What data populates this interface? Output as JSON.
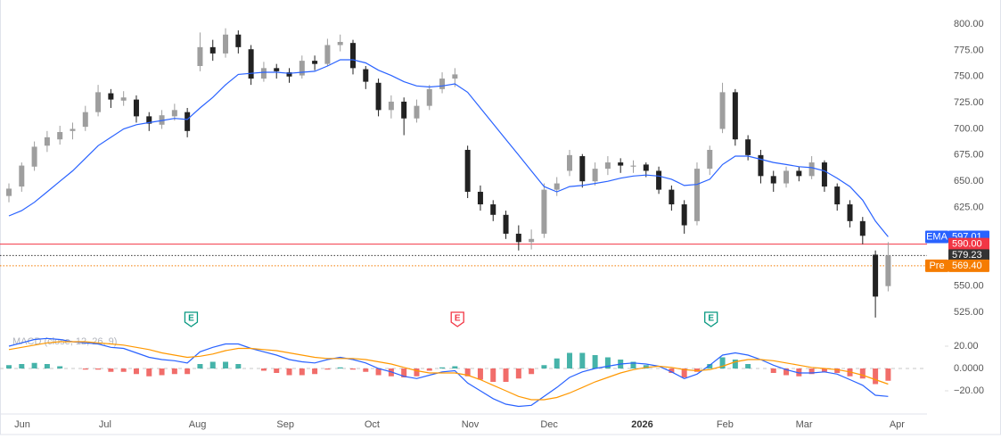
{
  "chart_data": [
    {
      "type": "candlestick",
      "xlim": [
        -0.7,
        71.7
      ],
      "xticks": [
        {
          "value": 1.05,
          "label": "Jun"
        },
        {
          "value": 7.55,
          "label": "Jul"
        },
        {
          "value": 14.8,
          "label": "Aug"
        },
        {
          "value": 21.7,
          "label": "Sep"
        },
        {
          "value": 28.5,
          "label": "Oct"
        },
        {
          "value": 36.2,
          "label": "Nov"
        },
        {
          "value": 42.4,
          "label": "Dec"
        },
        {
          "value": 49.7,
          "label": "2026"
        },
        {
          "value": 56.2,
          "label": "Feb"
        },
        {
          "value": 62.4,
          "label": "Mar"
        },
        {
          "value": 69.7,
          "label": "Apr"
        }
      ],
      "ylim": [
        508,
        823
      ],
      "yticks": [
        {
          "value": 800,
          "label": "800.00"
        },
        {
          "value": 775,
          "label": "775.00"
        },
        {
          "value": 750,
          "label": "750.00"
        },
        {
          "value": 725,
          "label": "725.00"
        },
        {
          "value": 700,
          "label": "700.00"
        },
        {
          "value": 675,
          "label": "675.00"
        },
        {
          "value": 650,
          "label": "650.00"
        },
        {
          "value": 625,
          "label": "625.00"
        },
        {
          "value": 550,
          "label": "550.00"
        },
        {
          "value": 525,
          "label": "525.00"
        }
      ],
      "up_color": "#9e9e9e",
      "down_color": "#222222",
      "ohlc": [
        [
          636,
          648,
          630,
          643
        ],
        [
          645,
          668,
          640,
          665
        ],
        [
          664,
          688,
          660,
          683
        ],
        [
          684,
          698,
          678,
          692
        ],
        [
          690,
          703,
          685,
          697
        ],
        [
          698,
          706,
          690,
          700
        ],
        [
          702,
          722,
          698,
          716
        ],
        [
          716,
          742,
          712,
          735
        ],
        [
          734,
          738,
          720,
          728
        ],
        [
          727,
          736,
          722,
          730
        ],
        [
          728,
          732,
          706,
          712
        ],
        [
          712,
          716,
          698,
          705
        ],
        [
          704,
          718,
          700,
          713
        ],
        [
          712,
          724,
          708,
          718
        ],
        [
          716,
          720,
          692,
          698
        ],
        [
          760,
          792,
          755,
          778
        ],
        [
          778,
          785,
          765,
          772
        ],
        [
          772,
          796,
          768,
          790
        ],
        [
          790,
          794,
          772,
          778
        ],
        [
          776,
          780,
          742,
          748
        ],
        [
          748,
          764,
          745,
          758
        ],
        [
          758,
          762,
          748,
          755
        ],
        [
          754,
          758,
          744,
          750
        ],
        [
          751,
          770,
          748,
          765
        ],
        [
          765,
          770,
          756,
          762
        ],
        [
          762,
          786,
          760,
          780
        ],
        [
          780,
          790,
          774,
          783
        ],
        [
          782,
          785,
          752,
          758
        ],
        [
          757,
          760,
          738,
          745
        ],
        [
          744,
          748,
          712,
          718
        ],
        [
          718,
          732,
          710,
          726
        ],
        [
          726,
          730,
          694,
          710
        ],
        [
          710,
          728,
          706,
          722
        ],
        [
          722,
          742,
          718,
          738
        ],
        [
          738,
          754,
          734,
          748
        ],
        [
          748,
          758,
          740,
          752
        ],
        [
          680,
          684,
          634,
          640
        ],
        [
          640,
          646,
          622,
          628
        ],
        [
          628,
          632,
          612,
          618
        ],
        [
          618,
          622,
          595,
          600
        ],
        [
          600,
          608,
          584,
          592
        ],
        [
          592,
          604,
          585,
          595
        ],
        [
          600,
          648,
          596,
          642
        ],
        [
          642,
          654,
          636,
          648
        ],
        [
          660,
          680,
          655,
          675
        ],
        [
          674,
          676,
          644,
          650
        ],
        [
          650,
          668,
          646,
          662
        ],
        [
          662,
          674,
          656,
          668
        ],
        [
          668,
          672,
          658,
          665
        ],
        [
          664,
          670,
          658,
          665
        ],
        [
          666,
          668,
          654,
          660
        ],
        [
          660,
          664,
          638,
          642
        ],
        [
          642,
          646,
          622,
          628
        ],
        [
          628,
          632,
          600,
          608
        ],
        [
          612,
          668,
          608,
          662
        ],
        [
          662,
          684,
          656,
          680
        ],
        [
          700,
          744,
          696,
          735
        ],
        [
          735,
          738,
          684,
          690
        ],
        [
          690,
          694,
          670,
          675
        ],
        [
          675,
          680,
          648,
          655
        ],
        [
          655,
          660,
          640,
          648
        ],
        [
          648,
          664,
          644,
          660
        ],
        [
          660,
          664,
          650,
          655
        ],
        [
          655,
          674,
          652,
          668
        ],
        [
          668,
          670,
          640,
          645
        ],
        [
          645,
          648,
          622,
          628
        ],
        [
          628,
          632,
          606,
          612
        ],
        [
          612,
          616,
          590,
          598
        ],
        [
          580,
          584,
          520,
          540
        ],
        [
          550,
          592,
          545,
          579.23
        ]
      ],
      "ema": {
        "color": "#2962ff",
        "values": [
          617,
          622,
          630,
          640,
          650,
          660,
          672,
          684,
          692,
          700,
          704,
          706,
          708,
          710,
          709,
          720,
          730,
          742,
          752,
          753,
          754,
          754,
          753,
          754,
          755,
          760,
          766,
          766,
          763,
          756,
          751,
          745,
          741,
          740,
          741,
          743,
          735,
          720,
          705,
          690,
          675,
          660,
          645,
          640,
          645,
          646,
          648,
          650,
          653,
          655,
          656,
          655,
          652,
          646,
          647,
          652,
          666,
          674,
          674,
          671,
          668,
          666,
          664,
          663,
          660,
          653,
          645,
          632,
          612,
          597.01
        ]
      },
      "price_lines": [
        {
          "name": "EMA",
          "value": 597.01,
          "color": "#2962ff",
          "line": "none"
        },
        {
          "value": 590,
          "value_label": "590.00",
          "color": "#f23645",
          "line": "solid"
        },
        {
          "value": 579.23,
          "color": "#333333",
          "line": "dotted"
        },
        {
          "name": "Pre",
          "value": 569.4,
          "value_label": "569.40",
          "color": "#f57c00",
          "line": "dotted"
        }
      ],
      "events": [
        {
          "label": "E",
          "x": 14.3,
          "color": "#089981"
        },
        {
          "label": "E",
          "x": 35.2,
          "color": "#f23645"
        },
        {
          "label": "E",
          "x": 55.1,
          "color": "#089981"
        }
      ]
    },
    {
      "type": "macd",
      "title": "MACD (close, 12, 26, 9)",
      "ylim": [
        -37.6,
        34.4
      ],
      "yticks": [
        {
          "value": 20,
          "label": "20.00"
        },
        {
          "value": 0,
          "label": "0.0000"
        },
        {
          "value": -20,
          "label": "−20.00"
        }
      ],
      "macd": {
        "color": "#2962ff",
        "values": [
          20,
          23,
          26,
          27,
          26,
          24,
          23,
          22,
          19,
          18,
          14,
          10,
          8,
          7,
          5,
          15,
          19,
          22,
          22,
          18,
          15,
          12,
          8,
          6,
          5,
          8,
          10,
          8,
          5,
          0,
          -3,
          -7,
          -9,
          -6,
          -3,
          -2,
          -13,
          -20,
          -27,
          -32,
          -34,
          -33,
          -25,
          -17,
          -8,
          -3,
          0,
          2,
          4,
          5,
          4,
          2,
          -3,
          -9,
          -5,
          3,
          12,
          14,
          12,
          8,
          3,
          -1,
          -4,
          -4,
          -3,
          -5,
          -10,
          -15,
          -24,
          -25
        ]
      },
      "signal": {
        "color": "#ff9800",
        "values": [
          17,
          19,
          21,
          23,
          24,
          24,
          24,
          23,
          22,
          21,
          19,
          17,
          14,
          12,
          10,
          11,
          13,
          16,
          18,
          18,
          17,
          16,
          14,
          12,
          10,
          9,
          9,
          9,
          8,
          6,
          4,
          1,
          -2,
          -4,
          -4,
          -4,
          -6,
          -10,
          -15,
          -20,
          -25,
          -28,
          -28,
          -26,
          -22,
          -17,
          -12,
          -8,
          -4,
          -1,
          1,
          2,
          1,
          -1,
          -2,
          -1,
          2,
          6,
          8,
          8,
          7,
          5,
          3,
          1,
          0,
          -1,
          -3,
          -6,
          -10,
          -14
        ]
      },
      "histogram": {
        "positive_color": "#26a69a",
        "negative_color": "#ef5350",
        "values": [
          3,
          4,
          5,
          4,
          2,
          0,
          -1,
          -1,
          -3,
          -3,
          -5,
          -7,
          -6,
          -5,
          -5,
          4,
          6,
          6,
          4,
          0,
          -2,
          -4,
          -6,
          -6,
          -5,
          -1,
          1,
          -1,
          -3,
          -6,
          -7,
          -8,
          -7,
          -2,
          1,
          2,
          -7,
          -10,
          -12,
          -12,
          -9,
          -5,
          3,
          9,
          14,
          14,
          12,
          10,
          8,
          6,
          3,
          0,
          -4,
          -8,
          -3,
          4,
          10,
          8,
          4,
          0,
          -4,
          -6,
          -7,
          -5,
          -3,
          -4,
          -7,
          -9,
          -14,
          -11
        ]
      }
    }
  ]
}
